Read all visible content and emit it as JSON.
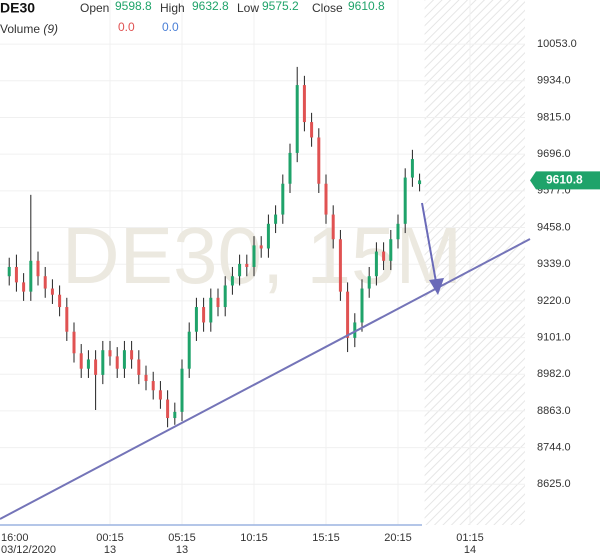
{
  "chart_data": {
    "type": "candlestick",
    "symbol": "DE30",
    "watermark": "DE30, 15M",
    "ohlc_labels": [
      "Open",
      "High",
      "Low",
      "Close"
    ],
    "indicator": {
      "name": "Volume",
      "param": "(9)",
      "readouts": [
        "0.0",
        "0.0"
      ],
      "colors": [
        "#e05252",
        "#4a7fd6"
      ]
    },
    "up_color": "#1fa36a",
    "down_color": "#e05252",
    "x": [
      1.25,
      1.75,
      2.25,
      2.75,
      3.25,
      3.75,
      4.25,
      4.75,
      5.25,
      5.75,
      6.25,
      6.75,
      7.25,
      7.75,
      8.25,
      8.75,
      9.25,
      9.75,
      10.25,
      10.75,
      11.25,
      11.75,
      12.25,
      12.75,
      13.25,
      13.75,
      14.25,
      14.75,
      15.25,
      15.75,
      16.25,
      16.75,
      17.25,
      17.75,
      18.25,
      18.75,
      19.25,
      19.75,
      20.25,
      20.75,
      21.25,
      21.75,
      22.25,
      22.75,
      23.25,
      23.75,
      24.25,
      24.75,
      25.25,
      25.75,
      26.25,
      26.75,
      27.25,
      27.75,
      28.25,
      28.75,
      29.25,
      29.75
    ],
    "open": [
      9300,
      9330,
      9280,
      9250,
      9350,
      9300,
      9260,
      9240,
      9200,
      9120,
      9050,
      9000,
      9030,
      8980,
      9060,
      9040,
      9000,
      9060,
      9030,
      8980,
      8960,
      8930,
      8900,
      8840,
      8860,
      9000,
      9120,
      9200,
      9150,
      9230,
      9200,
      9270,
      9300,
      9340,
      9330,
      9400,
      9390,
      9470,
      9500,
      9600,
      9700,
      9920,
      9800,
      9750,
      9600,
      9500,
      9420,
      9250,
      9100,
      9150,
      9260,
      9300,
      9380,
      9350,
      9420,
      9470,
      9620,
      9598.8
    ],
    "high": [
      9360,
      9370,
      9310,
      9564,
      9380,
      9330,
      9290,
      9270,
      9230,
      9150,
      9080,
      9060,
      9060,
      9090,
      9090,
      9070,
      9090,
      9090,
      9060,
      9010,
      8990,
      8960,
      8930,
      8890,
      9030,
      9150,
      9230,
      9230,
      9260,
      9260,
      9300,
      9330,
      9370,
      9370,
      9430,
      9430,
      9500,
      9530,
      9630,
      9730,
      9979,
      9950,
      9830,
      9780,
      9630,
      9530,
      9450,
      9280,
      9180,
      9290,
      9330,
      9410,
      9410,
      9450,
      9500,
      9650,
      9710,
      9632.8
    ],
    "low": [
      9270,
      9250,
      9220,
      9220,
      9270,
      9230,
      9210,
      9170,
      9090,
      9020,
      8970,
      8970,
      8866,
      8950,
      9010,
      8970,
      8970,
      9000,
      8950,
      8930,
      8900,
      8870,
      8810,
      8818,
      8830,
      8970,
      9090,
      9120,
      9120,
      9170,
      9170,
      9240,
      9270,
      9300,
      9300,
      9360,
      9360,
      9440,
      9470,
      9570,
      9670,
      9770,
      9720,
      9570,
      9470,
      9390,
      9220,
      9054,
      9070,
      9120,
      9230,
      9270,
      9320,
      9320,
      9390,
      9440,
      9590,
      9575.2
    ],
    "close": [
      9330,
      9280,
      9250,
      9350,
      9300,
      9260,
      9240,
      9200,
      9120,
      9050,
      9000,
      9030,
      8980,
      9060,
      9040,
      9000,
      9060,
      9030,
      8980,
      8960,
      8930,
      8900,
      8840,
      8860,
      9000,
      9120,
      9200,
      9150,
      9230,
      9200,
      9270,
      9300,
      9340,
      9330,
      9400,
      9390,
      9470,
      9500,
      9600,
      9700,
      9920,
      9800,
      9750,
      9600,
      9500,
      9420,
      9250,
      9100,
      9150,
      9260,
      9300,
      9380,
      9350,
      9420,
      9470,
      9620,
      9680,
      9610.8
    ],
    "xlim": [
      0.61,
      37.07
    ],
    "xticks": [
      {
        "value": 0,
        "label": "16:00"
      },
      {
        "value": 8.25,
        "label": "00:15"
      },
      {
        "value": 13.25,
        "label": "05:15"
      },
      {
        "value": 18.25,
        "label": "10:15"
      },
      {
        "value": 23.25,
        "label": "15:15"
      },
      {
        "value": 28.25,
        "label": "20:15"
      },
      {
        "value": 33.25,
        "label": "01:15"
      }
    ],
    "xtick_sublabels": [
      "03/12/2020",
      "13",
      "13",
      null,
      null,
      null,
      "14"
    ],
    "ylim": [
      8493,
      10196
    ],
    "yticks": [
      {
        "value": 10053,
        "label": "10053.0"
      },
      {
        "value": 9934,
        "label": "9934.0"
      },
      {
        "value": 9815,
        "label": "9815.0"
      },
      {
        "value": 9696,
        "label": "9696.0"
      },
      {
        "value": 9577,
        "label": "9577.0"
      },
      {
        "value": 9458,
        "label": "9458.0"
      },
      {
        "value": 9339,
        "label": "9339.0"
      },
      {
        "value": 9220,
        "label": "9220.0"
      },
      {
        "value": 9101,
        "label": "9101.0"
      },
      {
        "value": 8982,
        "label": "8982.0"
      },
      {
        "value": 8863,
        "label": "8863.0"
      },
      {
        "value": 8744,
        "label": "8744.0"
      },
      {
        "value": 8625,
        "label": "8625.0"
      }
    ],
    "grid": true
  }
}
